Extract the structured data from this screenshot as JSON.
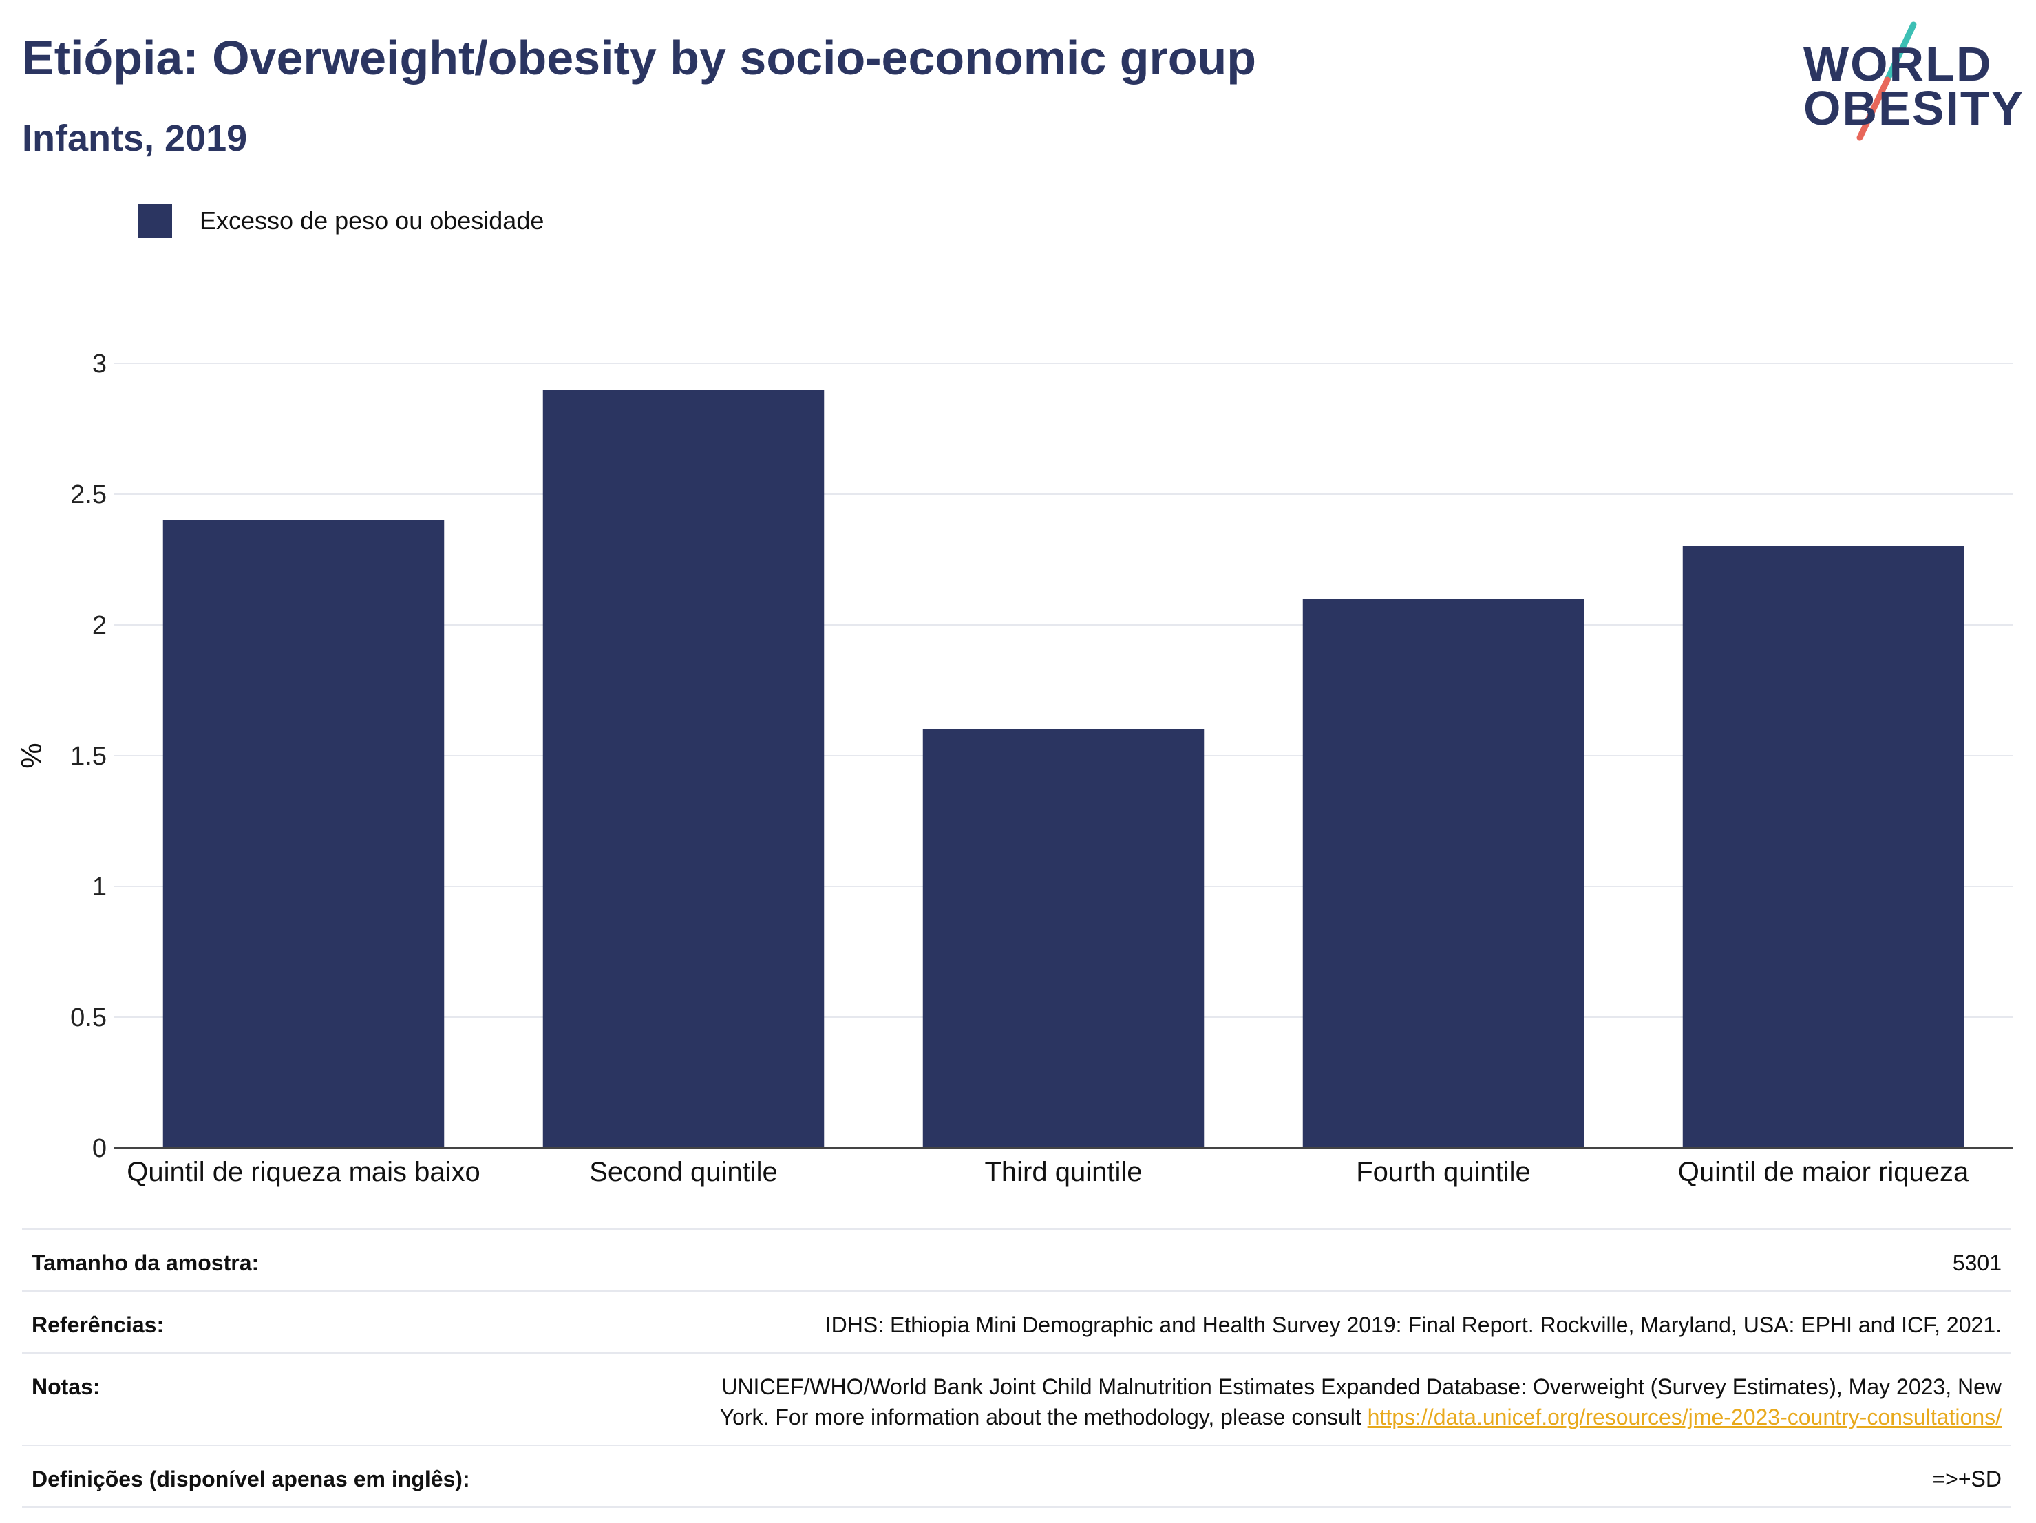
{
  "header": {
    "title": "Etiópia: Overweight/obesity by socio-economic group",
    "subtitle": "Infants, 2019"
  },
  "logo": {
    "line1": "WORLD",
    "line2": "OBESITY",
    "accent_colors": [
      "#3cbfb4",
      "#e8675a"
    ]
  },
  "legend": {
    "label": "Excesso de peso ou obesidade",
    "color": "#2b3561"
  },
  "chart_data": {
    "type": "bar",
    "categories": [
      "Quintil de riqueza mais baixo",
      "Second quintile",
      "Third quintile",
      "Fourth quintile",
      "Quintil de maior riqueza"
    ],
    "series": [
      {
        "name": "Excesso de peso ou obesidade",
        "values": [
          2.4,
          2.9,
          1.6,
          2.1,
          2.3
        ]
      }
    ],
    "ylabel": "%",
    "ylim": [
      0,
      3
    ],
    "yticks": [
      0,
      0.5,
      1,
      1.5,
      2,
      2.5,
      3
    ],
    "grid": true,
    "bar_color": "#2b3561",
    "legend_position": "top-left"
  },
  "info_table": {
    "sample_label": "Tamanho da amostra:",
    "sample_value": "5301",
    "references_label": "Referências:",
    "references_value": "IDHS: Ethiopia Mini Demographic and Health Survey 2019: Final Report. Rockville, Maryland, USA: EPHI and ICF, 2021.",
    "notes_label": "Notas:",
    "notes_value_line1": "UNICEF/WHO/World Bank Joint Child Malnutrition Estimates Expanded Database: Overweight (Survey Estimates), May 2023, New",
    "notes_value_line2": "York. For more information about the methodology, please consult ",
    "notes_link": "https://data.unicef.org/resources/jme-2023-country-consultations/",
    "definitions_label": "Definições (disponível apenas em inglês):",
    "definitions_value": "=>+SD"
  }
}
